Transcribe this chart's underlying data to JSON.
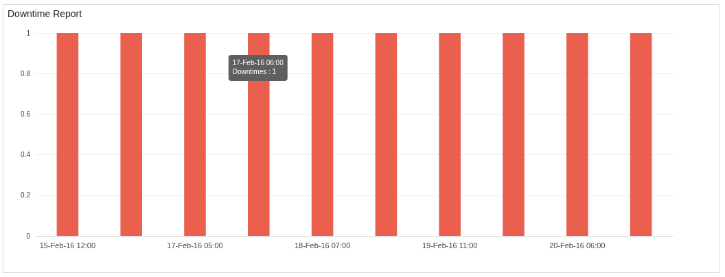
{
  "chart_data": {
    "type": "bar",
    "title": "Downtime Report",
    "categories": [
      "15-Feb-16 12:00",
      null,
      "17-Feb-16 05:00",
      null,
      "18-Feb-16 07:00",
      null,
      "19-Feb-16 11:00",
      null,
      "20-Feb-16 06:00",
      null
    ],
    "values": [
      1,
      1,
      1,
      1,
      1,
      1,
      1,
      1,
      1,
      1
    ],
    "color": "#eb5f4f",
    "ylim": [
      0,
      1
    ],
    "yticks": [
      0,
      0.2,
      0.4,
      0.6,
      0.8,
      1
    ],
    "grid": "y",
    "annotations": [
      "17-Feb-16 06:00\nDowntimes : 1"
    ]
  }
}
